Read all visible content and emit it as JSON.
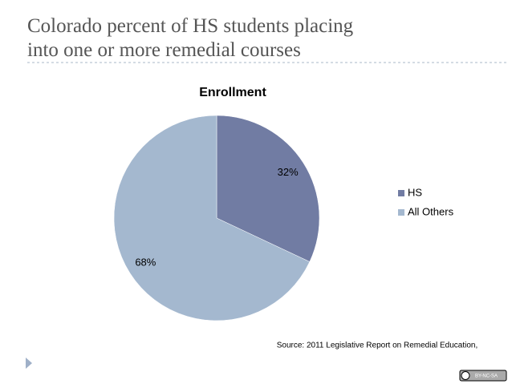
{
  "slide": {
    "title_lines": [
      "Colorado percent of HS students placing",
      "into one or more remedial courses"
    ],
    "source": "Source: 2011 Legislative Report on Remedial Education,",
    "badge": "BY-NC-SA"
  },
  "chart_data": {
    "type": "pie",
    "title": "Enrollment",
    "categories": [
      "HS",
      "All Others"
    ],
    "values": [
      32,
      68
    ],
    "value_labels": [
      "32%",
      "68%"
    ],
    "colors": [
      "#717ca3",
      "#a4b8cf"
    ],
    "legend": "right"
  }
}
